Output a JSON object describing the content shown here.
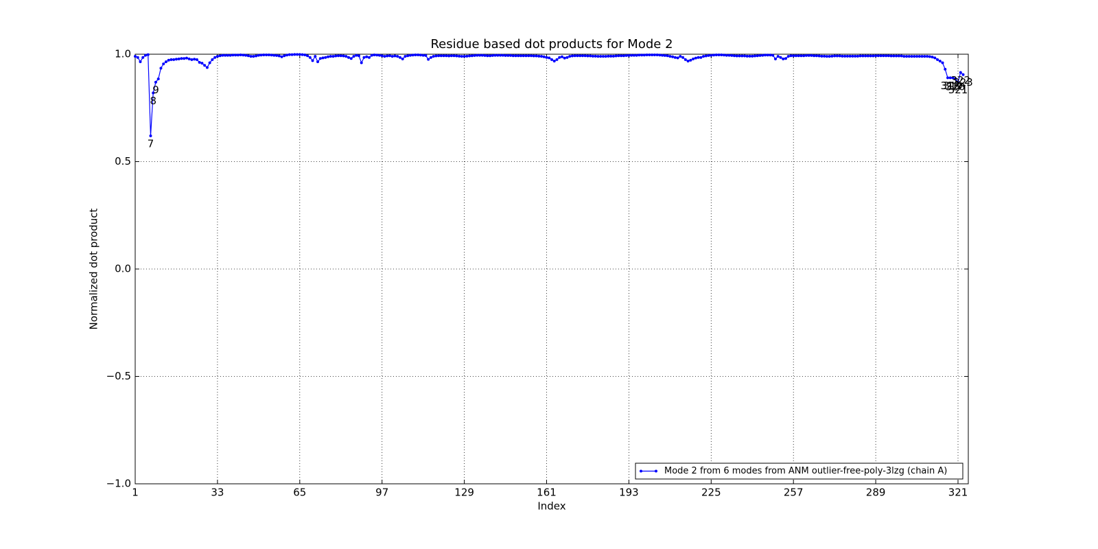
{
  "chart_data": {
    "type": "line",
    "title": "Residue based dot products for Mode 2",
    "xlabel": "Index",
    "ylabel": "Normalized dot product",
    "xlim": [
      1,
      325
    ],
    "ylim": [
      -1,
      1
    ],
    "xticks": [
      1,
      33,
      65,
      97,
      129,
      161,
      193,
      225,
      257,
      289,
      321
    ],
    "yticks": [
      {
        "value": -1,
        "label": "−1.0"
      },
      {
        "value": -0.5,
        "label": "−0.5"
      },
      {
        "value": 0,
        "label": "0.0"
      },
      0.5,
      {
        "value": 1,
        "label": "1.0"
      }
    ],
    "grid": true,
    "legend_loc": "lower right",
    "x": [
      1,
      2,
      3,
      4,
      5,
      6,
      7,
      8,
      9,
      10,
      11,
      12,
      13,
      14,
      15,
      16,
      17,
      18,
      19,
      20,
      21,
      22,
      23,
      24,
      25,
      26,
      27,
      28,
      29,
      30,
      31,
      32,
      33,
      34,
      35,
      36,
      37,
      38,
      39,
      40,
      41,
      42,
      43,
      44,
      45,
      46,
      47,
      48,
      49,
      50,
      51,
      52,
      53,
      54,
      55,
      56,
      57,
      58,
      59,
      60,
      61,
      62,
      63,
      64,
      65,
      66,
      67,
      68,
      69,
      70,
      71,
      72,
      73,
      74,
      75,
      76,
      77,
      78,
      79,
      80,
      81,
      82,
      83,
      84,
      85,
      86,
      87,
      88,
      89,
      90,
      91,
      92,
      93,
      94,
      95,
      96,
      97,
      98,
      99,
      100,
      101,
      102,
      103,
      104,
      105,
      106,
      107,
      108,
      109,
      110,
      111,
      112,
      113,
      114,
      115,
      116,
      117,
      118,
      119,
      120,
      121,
      122,
      123,
      124,
      125,
      126,
      127,
      128,
      129,
      130,
      131,
      132,
      133,
      134,
      135,
      136,
      137,
      138,
      139,
      140,
      141,
      142,
      143,
      144,
      145,
      146,
      147,
      148,
      149,
      150,
      151,
      152,
      153,
      154,
      155,
      156,
      157,
      158,
      159,
      160,
      161,
      162,
      163,
      164,
      165,
      166,
      167,
      168,
      169,
      170,
      171,
      172,
      173,
      174,
      175,
      176,
      177,
      178,
      179,
      180,
      181,
      182,
      183,
      184,
      185,
      186,
      187,
      188,
      189,
      190,
      191,
      192,
      193,
      194,
      195,
      196,
      197,
      198,
      199,
      200,
      201,
      202,
      203,
      204,
      205,
      206,
      207,
      208,
      209,
      210,
      211,
      212,
      213,
      214,
      215,
      216,
      217,
      218,
      219,
      220,
      221,
      222,
      223,
      224,
      225,
      226,
      227,
      228,
      229,
      230,
      231,
      232,
      233,
      234,
      235,
      236,
      237,
      238,
      239,
      240,
      241,
      242,
      243,
      244,
      245,
      246,
      247,
      248,
      249,
      250,
      251,
      252,
      253,
      254,
      255,
      256,
      257,
      258,
      259,
      260,
      261,
      262,
      263,
      264,
      265,
      266,
      267,
      268,
      269,
      270,
      271,
      272,
      273,
      274,
      275,
      276,
      277,
      278,
      279,
      280,
      281,
      282,
      283,
      284,
      285,
      286,
      287,
      288,
      289,
      290,
      291,
      292,
      293,
      294,
      295,
      296,
      297,
      298,
      299,
      300,
      301,
      302,
      303,
      304,
      305,
      306,
      307,
      308,
      309,
      310,
      311,
      312,
      313,
      314,
      315,
      316,
      317,
      318,
      319,
      320,
      321,
      322,
      323
    ],
    "series": [
      {
        "name": "Mode 2 from 6 modes from ANM outlier-free-poly-3lzg (chain A)",
        "color": "#0000ff",
        "values": [
          0.99,
          0.985,
          0.965,
          0.985,
          0.995,
          0.998,
          0.62,
          0.82,
          0.87,
          0.885,
          0.935,
          0.955,
          0.965,
          0.972,
          0.975,
          0.975,
          0.977,
          0.978,
          0.98,
          0.98,
          0.982,
          0.978,
          0.975,
          0.977,
          0.975,
          0.962,
          0.958,
          0.948,
          0.938,
          0.96,
          0.975,
          0.985,
          0.99,
          0.993,
          0.995,
          0.995,
          0.995,
          0.995,
          0.996,
          0.996,
          0.996,
          0.997,
          0.996,
          0.995,
          0.993,
          0.99,
          0.99,
          0.992,
          0.995,
          0.996,
          0.997,
          0.997,
          0.997,
          0.996,
          0.995,
          0.994,
          0.992,
          0.988,
          0.993,
          0.996,
          0.998,
          0.998,
          0.999,
          0.999,
          0.999,
          0.998,
          0.997,
          0.993,
          0.985,
          0.97,
          0.99,
          0.965,
          0.98,
          0.983,
          0.985,
          0.988,
          0.99,
          0.99,
          0.992,
          0.993,
          0.993,
          0.992,
          0.99,
          0.985,
          0.98,
          0.99,
          0.995,
          0.993,
          0.96,
          0.985,
          0.988,
          0.985,
          0.995,
          0.997,
          0.996,
          0.995,
          0.993,
          0.99,
          0.992,
          0.993,
          0.99,
          0.992,
          0.99,
          0.985,
          0.978,
          0.99,
          0.993,
          0.995,
          0.996,
          0.997,
          0.997,
          0.996,
          0.995,
          0.994,
          0.976,
          0.985,
          0.99,
          0.992,
          0.993,
          0.993,
          0.993,
          0.993,
          0.992,
          0.993,
          0.993,
          0.992,
          0.991,
          0.99,
          0.99,
          0.991,
          0.992,
          0.993,
          0.994,
          0.995,
          0.995,
          0.995,
          0.994,
          0.993,
          0.993,
          0.994,
          0.995,
          0.995,
          0.995,
          0.995,
          0.994,
          0.994,
          0.994,
          0.993,
          0.993,
          0.993,
          0.993,
          0.993,
          0.993,
          0.993,
          0.993,
          0.992,
          0.992,
          0.991,
          0.99,
          0.988,
          0.985,
          0.983,
          0.975,
          0.968,
          0.975,
          0.985,
          0.988,
          0.982,
          0.985,
          0.99,
          0.992,
          0.993,
          0.993,
          0.993,
          0.993,
          0.993,
          0.992,
          0.992,
          0.991,
          0.991,
          0.99,
          0.99,
          0.99,
          0.99,
          0.991,
          0.991,
          0.991,
          0.992,
          0.993,
          0.993,
          0.993,
          0.994,
          0.994,
          0.995,
          0.995,
          0.995,
          0.996,
          0.996,
          0.996,
          0.997,
          0.997,
          0.997,
          0.997,
          0.997,
          0.996,
          0.995,
          0.994,
          0.993,
          0.99,
          0.988,
          0.985,
          0.983,
          0.99,
          0.985,
          0.975,
          0.968,
          0.972,
          0.978,
          0.982,
          0.985,
          0.985,
          0.99,
          0.992,
          0.994,
          0.995,
          0.996,
          0.997,
          0.997,
          0.997,
          0.996,
          0.995,
          0.995,
          0.994,
          0.993,
          0.992,
          0.992,
          0.992,
          0.992,
          0.991,
          0.991,
          0.991,
          0.992,
          0.993,
          0.994,
          0.995,
          0.996,
          0.996,
          0.996,
          0.995,
          0.978,
          0.99,
          0.985,
          0.978,
          0.98,
          0.99,
          0.993,
          0.993,
          0.993,
          0.993,
          0.993,
          0.993,
          0.994,
          0.994,
          0.994,
          0.993,
          0.993,
          0.992,
          0.991,
          0.991,
          0.99,
          0.99,
          0.991,
          0.992,
          0.992,
          0.992,
          0.991,
          0.991,
          0.991,
          0.991,
          0.991,
          0.991,
          0.991,
          0.992,
          0.992,
          0.992,
          0.992,
          0.992,
          0.992,
          0.993,
          0.993,
          0.993,
          0.993,
          0.993,
          0.993,
          0.992,
          0.992,
          0.992,
          0.992,
          0.992,
          0.99,
          0.99,
          0.99,
          0.99,
          0.99,
          0.99,
          0.99,
          0.99,
          0.99,
          0.99,
          0.989,
          0.987,
          0.983,
          0.975,
          0.968,
          0.96,
          0.93,
          0.89,
          0.89,
          0.89,
          0.885,
          0.87,
          0.915,
          0.905
        ]
      }
    ],
    "annotations": [
      {
        "text": "7",
        "x": 7
      },
      {
        "text": "8",
        "x": 8
      },
      {
        "text": "9",
        "x": 9
      },
      {
        "text": "318",
        "x": 318
      },
      {
        "text": "319",
        "x": 319
      },
      {
        "text": "320",
        "x": 320
      },
      {
        "text": "321",
        "x": 321
      },
      {
        "text": "322",
        "x": 322
      },
      {
        "text": "323",
        "x": 323
      }
    ]
  }
}
